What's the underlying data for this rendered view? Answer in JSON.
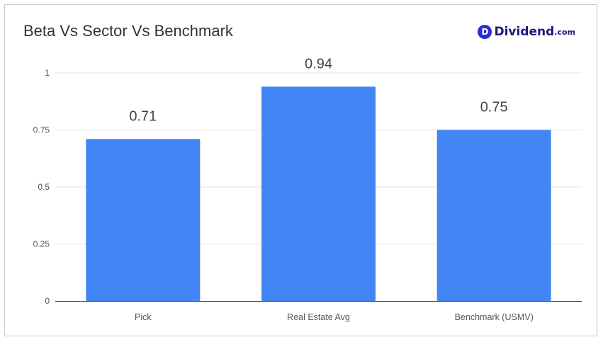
{
  "chart_data": {
    "type": "bar",
    "title": "Beta Vs Sector Vs Benchmark",
    "categories": [
      "Pick",
      "Real Estate Avg",
      "Benchmark (USMV)"
    ],
    "values": [
      0.71,
      0.94,
      0.75
    ],
    "data_labels": [
      "0.71",
      "0.94",
      "0.75"
    ],
    "ylim": [
      0,
      1
    ],
    "yticks": [
      0,
      0.25,
      0.5,
      0.75,
      1
    ],
    "ytick_labels": [
      "0",
      "0.25",
      "0.5",
      "0.75",
      "1"
    ],
    "xlabel": "",
    "ylabel": "",
    "grid": true,
    "bar_color": "#4285f4",
    "grid_color": "#e3e3e3"
  },
  "brand": {
    "mark": "D",
    "name": "Dividend",
    "tld": ".com",
    "color": "#1a1a7a",
    "mark_color": "#2a2fd0"
  }
}
